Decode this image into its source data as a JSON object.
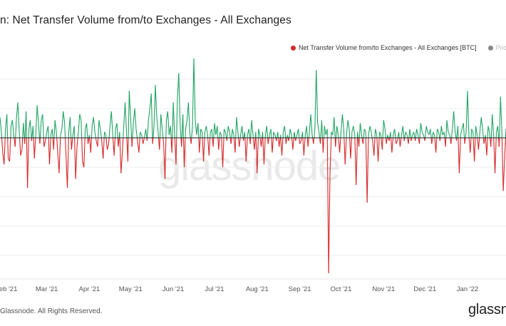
{
  "page": {
    "title": "n: Net Transfer Volume from/to Exchanges - All Exchanges",
    "footer": "Glassnode. All Rights Reserved.",
    "brand": "glassn",
    "watermark": "glassnode"
  },
  "legend": {
    "placement": "top-right",
    "items": [
      {
        "label": "Net Transfer Volume from/to Exchanges - All Exchanges [BTC]",
        "color": "#d62728"
      },
      {
        "label": "Price",
        "color": "#888888",
        "muted": true
      }
    ]
  },
  "chart_data": {
    "type": "line",
    "x_range": [
      "2021-01-26",
      "2022-01-29"
    ],
    "y_range": [
      -48000,
      28000
    ],
    "colors": {
      "positive": "#1fa463",
      "negative": "#d62728",
      "zero_line": "#333333"
    },
    "x_ticks": [
      {
        "date": "2021-02-01",
        "label": "eb '21"
      },
      {
        "date": "2021-03-01",
        "label": "Mar '21"
      },
      {
        "date": "2021-04-01",
        "label": "Apr '21"
      },
      {
        "date": "2021-05-01",
        "label": "May '21"
      },
      {
        "date": "2021-06-01",
        "label": "Jun '21"
      },
      {
        "date": "2021-07-01",
        "label": "Jul '21"
      },
      {
        "date": "2021-08-01",
        "label": "Aug '21"
      },
      {
        "date": "2021-09-01",
        "label": "Sep '21"
      },
      {
        "date": "2021-10-01",
        "label": "Oct '21"
      },
      {
        "date": "2021-11-01",
        "label": "Nov '21"
      },
      {
        "date": "2021-12-01",
        "label": "Dec '21"
      },
      {
        "date": "2022-01-01",
        "label": "Jan '22"
      }
    ],
    "gridline_values": [
      -40000,
      -30000,
      -20000,
      -10000,
      0,
      10000,
      20000
    ],
    "start_date": "2021-01-26",
    "values": [
      7000,
      2000,
      -5000,
      -9000,
      3000,
      8000,
      -7000,
      -8000,
      4000,
      6000,
      1000,
      -3000,
      7000,
      12000,
      2000,
      -6000,
      -4000,
      5000,
      -2000,
      9000,
      -17000,
      3000,
      6000,
      -1000,
      4000,
      -7000,
      1000,
      11000,
      5000,
      -2000,
      6000,
      8000,
      -3000,
      -1000,
      2000,
      4000,
      -9000,
      1000,
      3000,
      -4000,
      6000,
      2000,
      -5000,
      -12000,
      1000,
      3000,
      9000,
      5000,
      -6000,
      -17000,
      2000,
      7000,
      -4000,
      1000,
      4000,
      -14000,
      -3000,
      2000,
      8000,
      6000,
      -8000,
      -10000,
      3000,
      5000,
      -2000,
      1000,
      -5000,
      4000,
      7000,
      2000,
      -1000,
      -3000,
      6000,
      3000,
      -1000,
      -7000,
      2000,
      1000,
      -4000,
      -2000,
      4000,
      9000,
      1000,
      -6000,
      3000,
      5000,
      -3000,
      2000,
      -12000,
      -5000,
      4000,
      12000,
      2000,
      -8000,
      16000,
      7000,
      -3000,
      5000,
      10000,
      3000,
      -1000,
      -5000,
      2000,
      1000,
      -2000,
      0,
      3000,
      -1000,
      6000,
      10000,
      15000,
      -2000,
      4000,
      18000,
      7000,
      2000,
      -4000,
      8000,
      3000,
      -2000,
      -14000,
      6000,
      9000,
      1000,
      4000,
      -5000,
      12000,
      1000,
      -9000,
      13000,
      22000,
      5000,
      -3000,
      8000,
      -10000,
      3000,
      6000,
      12000,
      2000,
      -2000,
      4000,
      27000,
      6000,
      1000,
      5000,
      -5000,
      3000,
      2000,
      -8000,
      2000,
      4000,
      1000,
      -6000,
      2000,
      3000,
      -3000,
      5000,
      1000,
      4000,
      -4000,
      2000,
      1000,
      -10000,
      3000,
      2000,
      -1000,
      4000,
      2000,
      -2000,
      3000,
      1000,
      -5000,
      7000,
      2000,
      -3000,
      1000,
      4000,
      -1000,
      2000,
      -8000,
      1000,
      3000,
      -2000,
      6000,
      1000,
      -4000,
      2000,
      -12000,
      3000,
      1000,
      -3000,
      2000,
      -9000,
      1000,
      4000,
      -2000,
      1000,
      3000,
      -5000,
      2000,
      1000,
      -1000,
      2000,
      -3000,
      1000,
      -6000,
      2000,
      4000,
      -2000,
      1000,
      -1000,
      3000,
      1000,
      -4000,
      2000,
      -1000,
      1000,
      3000,
      -2000,
      -1000,
      2000,
      -6000,
      1000,
      4000,
      -3000,
      2000,
      8000,
      1000,
      -2000,
      3000,
      23000,
      5000,
      2000,
      -2000,
      6000,
      -5000,
      4000,
      1000,
      3000,
      -46000,
      -12000,
      2000,
      1000,
      7000,
      -3000,
      4000,
      1000,
      -5000,
      2000,
      8000,
      3000,
      -9000,
      1000,
      6000,
      3000,
      -7000,
      2000,
      4000,
      1000,
      -16000,
      2000,
      -3000,
      5000,
      1000,
      -2000,
      3000,
      2000,
      -22000,
      1000,
      4000,
      2000,
      -1000,
      -6000,
      3000,
      1000,
      -8000,
      2000,
      1000,
      -4000,
      6000,
      3000,
      -2000,
      1000,
      -1000,
      2000,
      -5000,
      1000,
      3000,
      -2000,
      -1000,
      2000,
      -3000,
      1000,
      4000,
      -1000,
      2000,
      1000,
      -2000,
      3000,
      -1000,
      1000,
      2000,
      -1000,
      3000,
      1000,
      -2000,
      5000,
      2000,
      1000,
      -1000,
      4000,
      2000,
      1000,
      3000,
      -2000,
      2000,
      1000,
      -5000,
      3000,
      2000,
      -1000,
      4000,
      1000,
      2000,
      -3000,
      6000,
      2000,
      1000,
      -2000,
      3000,
      9000,
      2000,
      -1000,
      4000,
      -12000,
      1000,
      3000,
      5000,
      -2000,
      2000,
      16000,
      1000,
      -5000,
      3000,
      2000,
      -8000,
      4000,
      1000,
      -4000,
      2000,
      7000,
      3000,
      -2000,
      1000,
      -6000,
      4000,
      2000,
      -3000,
      8000,
      1000,
      -12000,
      2000,
      4000,
      -3000,
      14000,
      2000,
      -18000,
      -7000,
      3000,
      -20000,
      2000,
      5000,
      1000,
      -8000,
      3000,
      2000,
      -5000,
      1000,
      6000,
      3000,
      -2000,
      7000,
      -4000,
      1000,
      2000,
      -3000,
      5000,
      2000,
      1000,
      -6000,
      9000,
      2000,
      1000,
      -2000,
      4000,
      1000
    ]
  },
  "x_ticks_display": [
    "eb '21",
    "Mar '21",
    "Apr '21",
    "May '21",
    "Jun '21",
    "Jul '21",
    "Aug '21",
    "Sep '21",
    "Oct '21",
    "Nov '21",
    "Dec '21",
    "Jan '22"
  ]
}
